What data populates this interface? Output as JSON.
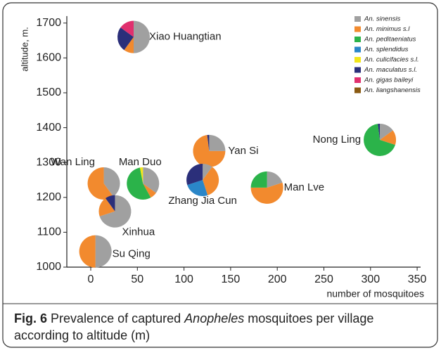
{
  "chart_data": {
    "type": "scatter",
    "xlabel": "number of mosquitoes",
    "ylabel": "altitude, m.",
    "xlim": [
      -25,
      355
    ],
    "ylim": [
      1000,
      1720
    ],
    "xticks": [
      0,
      50,
      100,
      150,
      200,
      250,
      300,
      350
    ],
    "yticks": [
      1000,
      1100,
      1200,
      1300,
      1400,
      1500,
      1600,
      1700
    ],
    "categories": [
      "Xiao Huangtian",
      "Yan Si",
      "Nong Ling",
      "Wan Ling",
      "Man Duo",
      "Zhang Jia Cun",
      "Man Lve",
      "Xinhua",
      "Su Qing"
    ],
    "x": [
      46,
      127,
      310,
      14,
      56,
      120,
      189,
      26,
      5
    ],
    "y": [
      1660,
      1333,
      1365,
      1240,
      1240,
      1250,
      1228,
      1160,
      1045
    ],
    "series": [
      {
        "name": "An. sinensis",
        "color": "#a0a0a0",
        "values": [
          50,
          25,
          15,
          40,
          35,
          10,
          20,
          70,
          50
        ]
      },
      {
        "name": "An. minimus s.l",
        "color": "#f28a2e",
        "values": [
          10,
          73,
          15,
          60,
          7,
          35,
          55,
          20,
          50
        ]
      },
      {
        "name": "An. peditaeniatus",
        "color": "#2bb34a",
        "values": [
          0,
          0,
          68,
          0,
          55,
          0,
          25,
          0,
          0
        ]
      },
      {
        "name": "An. splendidus",
        "color": "#2a86c8",
        "values": [
          0,
          0,
          0,
          0,
          0,
          25,
          0,
          0,
          0
        ]
      },
      {
        "name": "An. culicifacies s.l.",
        "color": "#f2e61a",
        "values": [
          0,
          0,
          0,
          0,
          3,
          0,
          0,
          0,
          0
        ]
      },
      {
        "name": "An. maculatus s.l.",
        "color": "#2b2f7a",
        "values": [
          25,
          2,
          2,
          0,
          0,
          30,
          0,
          10,
          0
        ]
      },
      {
        "name": "An. gigas baileyi",
        "color": "#e0306e",
        "values": [
          15,
          0,
          0,
          0,
          0,
          0,
          0,
          0,
          0
        ]
      },
      {
        "name": "An. liangshanensis",
        "color": "#8a5a12",
        "values": [
          0,
          0,
          0,
          0,
          0,
          0,
          0,
          0,
          0
        ]
      }
    ]
  },
  "caption": {
    "label": "Fig. 6",
    "parts": [
      "Prevalence of captured",
      "Anopheles",
      "mosquitoes per village",
      "according to altitude (m)"
    ]
  }
}
